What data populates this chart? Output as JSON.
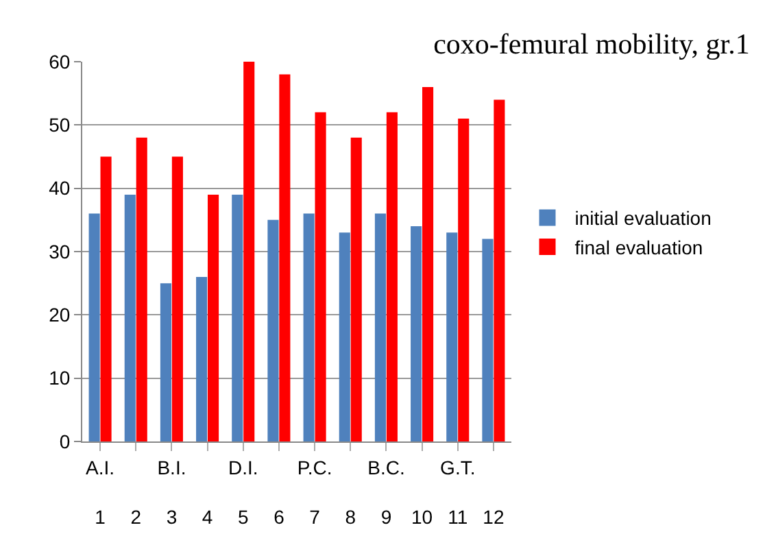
{
  "chart_data": {
    "type": "bar",
    "title": "coxo-femural mobility, gr.1",
    "categories": [
      "A.I.\n1",
      "2",
      "B.I.\n3",
      "4",
      "D.I.\n5",
      "6",
      "P.C.\n7",
      "8",
      "B.C.\n9",
      "10",
      "G.T.\n11",
      "12"
    ],
    "series": [
      {
        "name": "initial evaluation",
        "color": "#4f81bd",
        "values": [
          36,
          39,
          25,
          26,
          39,
          35,
          36,
          33,
          36,
          34,
          33,
          32
        ]
      },
      {
        "name": "final evaluation",
        "color": "#ff0000",
        "values": [
          45,
          48,
          45,
          39,
          60,
          58,
          52,
          48,
          52,
          56,
          51,
          54
        ]
      }
    ],
    "ylim": [
      0,
      60
    ],
    "yticks": [
      0,
      10,
      20,
      30,
      40,
      50,
      60
    ],
    "grid": "y",
    "legend": "right"
  }
}
